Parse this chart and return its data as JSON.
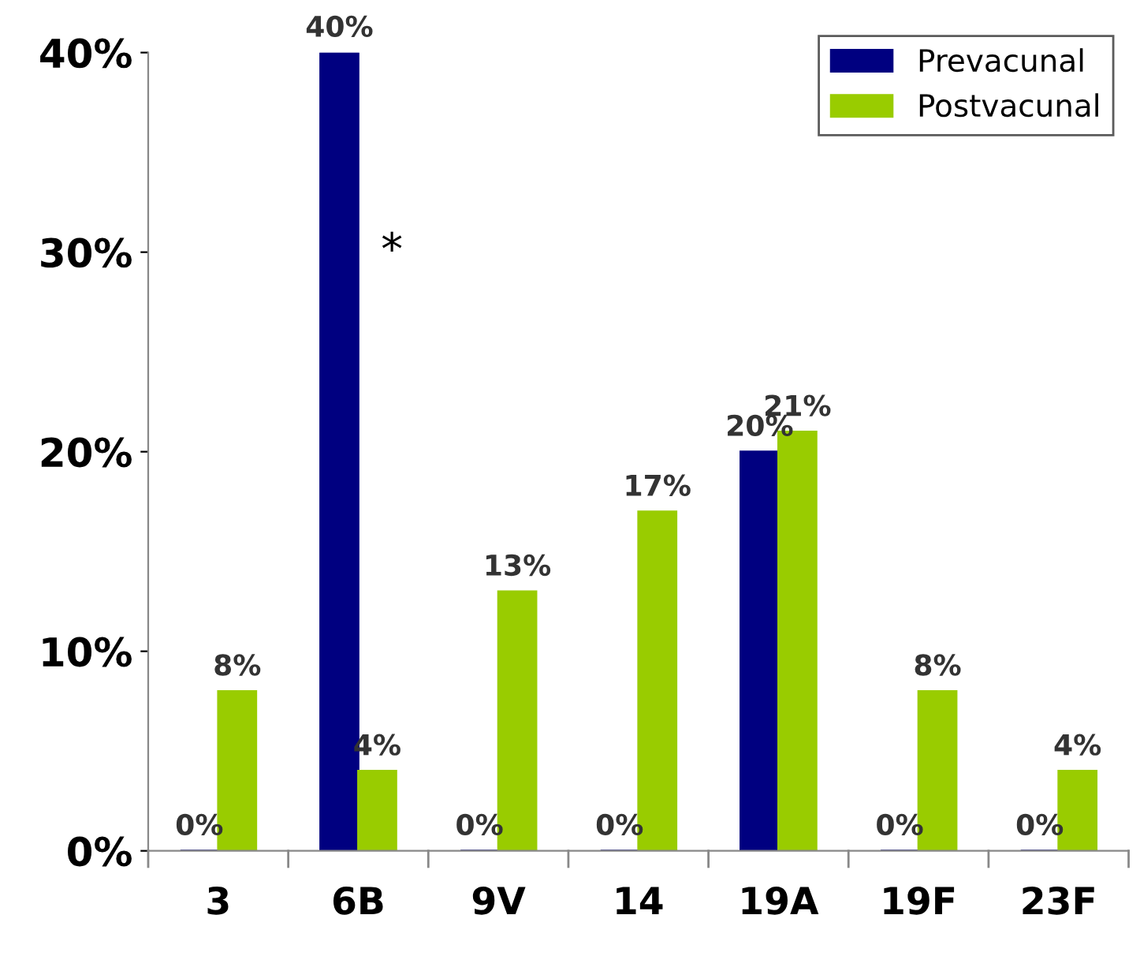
{
  "chart_data": {
    "type": "bar",
    "categories": [
      "3",
      "6B",
      "9V",
      "14",
      "19A",
      "19F",
      "23F"
    ],
    "series": [
      {
        "name": "Prevacunal",
        "color": "#000080",
        "values": [
          0,
          40,
          0,
          0,
          20,
          0,
          0
        ],
        "value_labels": [
          "0%",
          "40%",
          "0%",
          "0%",
          "20%",
          "0%",
          "0%"
        ]
      },
      {
        "name": "Postvacunal",
        "color": "#99cc00",
        "values": [
          8,
          4,
          13,
          17,
          21,
          8,
          4
        ],
        "value_labels": [
          "8%",
          "4%",
          "13%",
          "17%",
          "21%",
          "8%",
          "4%"
        ]
      }
    ],
    "ylim": [
      0,
      40
    ],
    "yticks": [
      {
        "value": 0,
        "label": "0%"
      },
      {
        "value": 10,
        "label": "10%"
      },
      {
        "value": 20,
        "label": "20%"
      },
      {
        "value": 30,
        "label": "30%"
      },
      {
        "value": 40,
        "label": "40%"
      }
    ],
    "annotations": [
      {
        "text": "*",
        "x": "6B",
        "y": 30
      }
    ],
    "legend": "top right",
    "grid": false
  }
}
